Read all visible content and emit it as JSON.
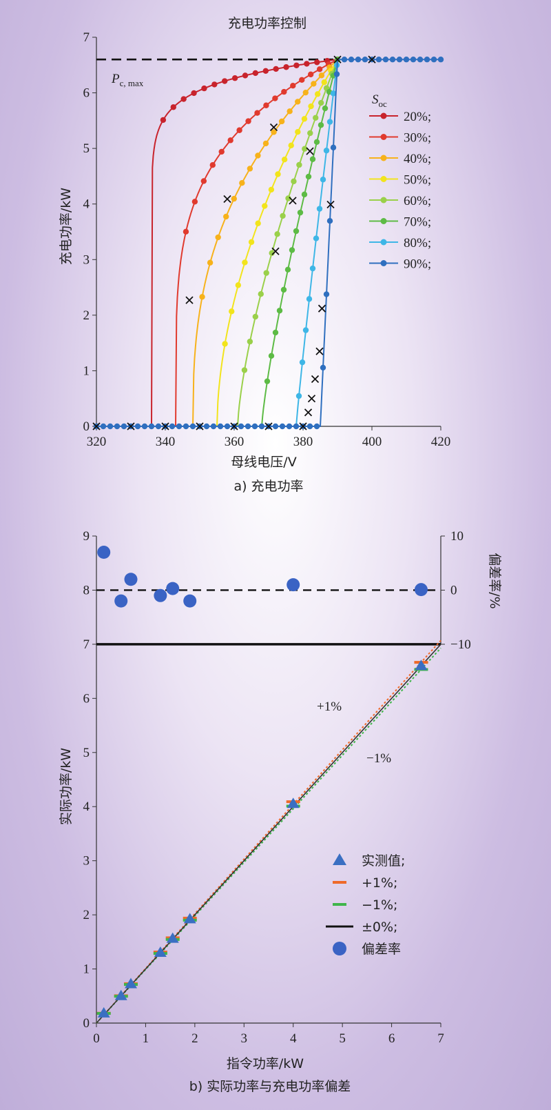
{
  "chart_data": [
    {
      "type": "line",
      "title": "充电功率控制",
      "caption": "a) 充电功率",
      "xlabel": "母线电压/V",
      "ylabel": "充电功率/kW",
      "xlim": [
        320,
        420
      ],
      "ylim": [
        0,
        7
      ],
      "xticks": [
        "320",
        "340",
        "360",
        "380",
        "400",
        "420"
      ],
      "yticks": [
        "0",
        "1",
        "2",
        "3",
        "4",
        "5",
        "6",
        "7"
      ],
      "legend_title": "S",
      "legend_title_sub": "oc",
      "legend_position": "right",
      "pmax_label": "P",
      "pmax_label_sub": "c, max",
      "pmax_value": 6.6,
      "series": [
        {
          "name": "20%;",
          "color": "#c8232c",
          "v0": 336,
          "v1": 390,
          "k": 0.065
        },
        {
          "name": "30%;",
          "color": "#e03a2e",
          "v0": 343,
          "v1": 390,
          "k": 0.23
        },
        {
          "name": "40%;",
          "color": "#f7b21b",
          "v0": 348,
          "v1": 390,
          "k": 0.38
        },
        {
          "name": "50%;",
          "color": "#f2e41c",
          "v0": 355,
          "v1": 390,
          "k": 0.55
        },
        {
          "name": "60%;",
          "color": "#9ad04a",
          "v0": 361,
          "v1": 390,
          "k": 0.7
        },
        {
          "name": "70%;",
          "color": "#5dbb45",
          "v0": 368,
          "v1": 390,
          "k": 0.8
        },
        {
          "name": "80%;",
          "color": "#3eb6e6",
          "v0": 378,
          "v1": 390,
          "k": 0.92
        },
        {
          "name": "90%;",
          "color": "#2f6fbf",
          "v0": 385,
          "v1": 390,
          "k": 1.0
        }
      ],
      "x_markers": [
        [
          320,
          0
        ],
        [
          330,
          0
        ],
        [
          340,
          0
        ],
        [
          350,
          0
        ],
        [
          360,
          0
        ],
        [
          370,
          0
        ],
        [
          380,
          0
        ],
        [
          347,
          2.27
        ],
        [
          358,
          4.09
        ],
        [
          371.5,
          5.38
        ],
        [
          372,
          3.15
        ],
        [
          377,
          4.06
        ],
        [
          382,
          4.95
        ],
        [
          388,
          3.99
        ],
        [
          385.5,
          2.12
        ],
        [
          384.8,
          1.35
        ],
        [
          383.5,
          0.85
        ],
        [
          382.5,
          0.5
        ],
        [
          381.5,
          0.25
        ],
        [
          390,
          6.6
        ],
        [
          400,
          6.6
        ]
      ]
    },
    {
      "type": "scatter",
      "caption": "b) 实际功率与充电功率偏差",
      "xlabel": "指令功率/kW",
      "ylabel": "实际功率/kW",
      "y2label": "偏差率/%",
      "xlim": [
        0,
        7
      ],
      "ylim": [
        0,
        9
      ],
      "y2lim": [
        -10,
        10
      ],
      "xticks": [
        "0",
        "1",
        "2",
        "3",
        "4",
        "5",
        "6",
        "7"
      ],
      "yticks": [
        "0",
        "1",
        "2",
        "3",
        "4",
        "5",
        "6",
        "7",
        "8",
        "9"
      ],
      "y2ticks": [
        "−10",
        "0",
        "10"
      ],
      "annotation_plus": "+1%",
      "annotation_minus": "−1%",
      "legend_position": "lower-right",
      "legend": [
        "实测值;",
        "+1%;",
        "−1%;",
        "±0%;",
        "偏差率"
      ],
      "colors": {
        "measured": "#3a6fc2",
        "plus": "#ee6a2a",
        "minus": "#3fb54a",
        "zero": "#111111",
        "deviation": "#3a63c4"
      },
      "x": [
        0.15,
        0.5,
        0.7,
        1.3,
        1.55,
        1.9,
        4.0,
        6.6
      ],
      "measured": [
        0.18,
        0.5,
        0.72,
        1.3,
        1.56,
        1.92,
        4.05,
        6.6
      ],
      "deviation": [
        7.0,
        -2.0,
        2.0,
        -1.0,
        0.3,
        -2.0,
        1.0,
        0.1
      ]
    }
  ]
}
